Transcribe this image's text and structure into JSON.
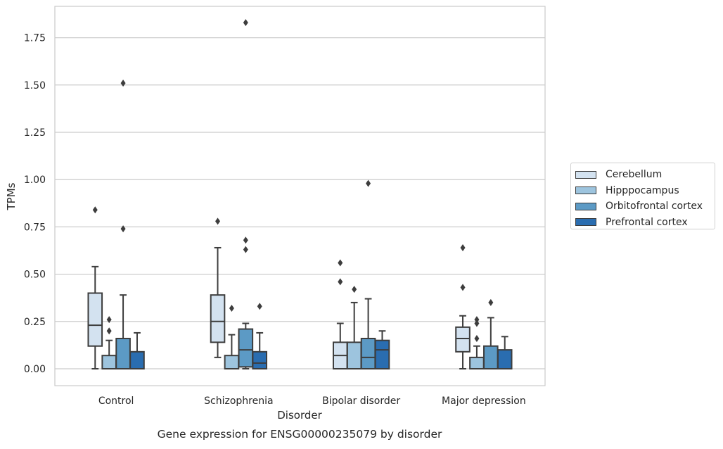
{
  "chart_data": {
    "type": "box",
    "title": "Gene expression for ENSG00000235079 by disorder",
    "xlabel": "Disorder",
    "ylabel": "TPMs",
    "ylim": [
      -0.09,
      1.9
    ],
    "yticks": [
      0.0,
      0.25,
      0.5,
      0.75,
      1.0,
      1.25,
      1.5,
      1.75
    ],
    "ytick_labels": [
      "0.00",
      "0.25",
      "0.50",
      "0.75",
      "1.00",
      "1.25",
      "1.50",
      "1.75"
    ],
    "grid": "horizontal",
    "legend_position": "right",
    "categories": [
      "Control",
      "Schizophrenia",
      "Bipolar disorder",
      "Major depression"
    ],
    "series": [
      {
        "name": "Cerebellum",
        "color": "#d3e2f0",
        "boxes": [
          {
            "whislo": 0.0,
            "q1": 0.12,
            "med": 0.23,
            "q3": 0.4,
            "whishi": 0.54,
            "fliers": [
              0.84
            ]
          },
          {
            "whislo": 0.06,
            "q1": 0.14,
            "med": 0.25,
            "q3": 0.39,
            "whishi": 0.64,
            "fliers": [
              0.78
            ]
          },
          {
            "whislo": 0.0,
            "q1": 0.0,
            "med": 0.07,
            "q3": 0.14,
            "whishi": 0.24,
            "fliers": [
              0.46,
              0.56
            ]
          },
          {
            "whislo": 0.0,
            "q1": 0.09,
            "med": 0.16,
            "q3": 0.22,
            "whishi": 0.28,
            "fliers": [
              0.43,
              0.64
            ]
          }
        ]
      },
      {
        "name": "Hipppocampus",
        "color": "#9dc4de",
        "boxes": [
          {
            "whislo": 0.0,
            "q1": 0.0,
            "med": 0.0,
            "q3": 0.07,
            "whishi": 0.15,
            "fliers": [
              0.2,
              0.26
            ]
          },
          {
            "whislo": 0.0,
            "q1": 0.0,
            "med": 0.0,
            "q3": 0.07,
            "whishi": 0.18,
            "fliers": [
              0.32
            ]
          },
          {
            "whislo": 0.0,
            "q1": 0.0,
            "med": 0.0,
            "q3": 0.14,
            "whishi": 0.35,
            "fliers": [
              0.42
            ]
          },
          {
            "whislo": 0.0,
            "q1": 0.0,
            "med": 0.0,
            "q3": 0.06,
            "whishi": 0.12,
            "fliers": [
              0.16,
              0.24,
              0.26
            ]
          }
        ]
      },
      {
        "name": "Orbitofrontal cortex",
        "color": "#5c9ac5",
        "boxes": [
          {
            "whislo": 0.0,
            "q1": 0.0,
            "med": 0.0,
            "q3": 0.16,
            "whishi": 0.39,
            "fliers": [
              0.74,
              1.51
            ]
          },
          {
            "whislo": 0.0,
            "q1": 0.01,
            "med": 0.1,
            "q3": 0.21,
            "whishi": 0.24,
            "fliers": [
              0.63,
              0.68,
              1.83
            ]
          },
          {
            "whislo": 0.0,
            "q1": 0.0,
            "med": 0.06,
            "q3": 0.16,
            "whishi": 0.37,
            "fliers": [
              0.98
            ]
          },
          {
            "whislo": 0.0,
            "q1": 0.0,
            "med": 0.0,
            "q3": 0.12,
            "whishi": 0.27,
            "fliers": [
              0.35
            ]
          }
        ]
      },
      {
        "name": "Prefrontal cortex",
        "color": "#2a6db0",
        "boxes": [
          {
            "whislo": 0.0,
            "q1": 0.0,
            "med": 0.0,
            "q3": 0.09,
            "whishi": 0.19,
            "fliers": []
          },
          {
            "whislo": 0.0,
            "q1": 0.0,
            "med": 0.03,
            "q3": 0.09,
            "whishi": 0.19,
            "fliers": [
              0.33
            ]
          },
          {
            "whislo": 0.0,
            "q1": 0.0,
            "med": 0.1,
            "q3": 0.15,
            "whishi": 0.2,
            "fliers": []
          },
          {
            "whislo": 0.0,
            "q1": 0.0,
            "med": 0.0,
            "q3": 0.1,
            "whishi": 0.17,
            "fliers": []
          }
        ]
      }
    ]
  }
}
